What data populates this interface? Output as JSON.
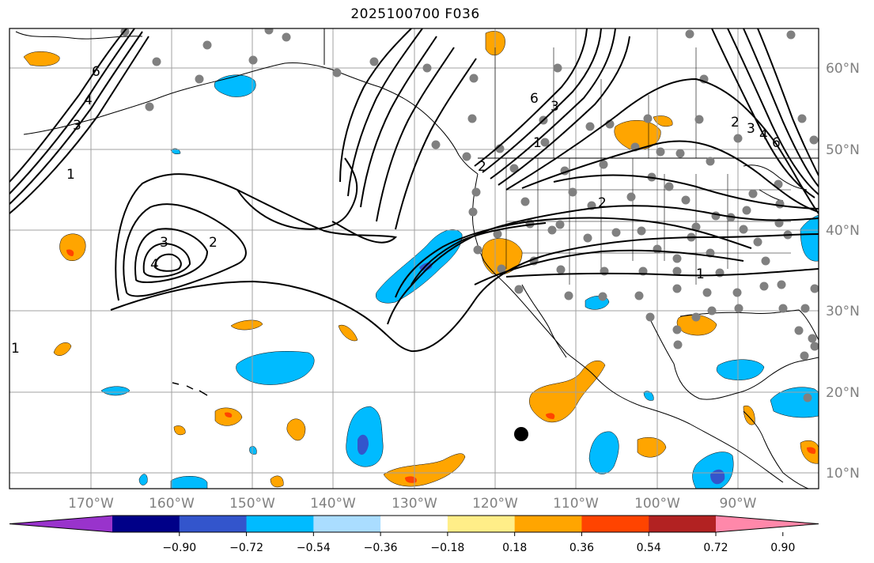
{
  "title": "2025100700 F036",
  "longitude_labels": [
    "170°W",
    "160°W",
    "150°W",
    "140°W",
    "130°W",
    "120°W",
    "110°W",
    "100°W",
    "90°W"
  ],
  "latitude_labels": [
    "60°N",
    "50°N",
    "40°N",
    "30°N",
    "20°N",
    "10°N"
  ],
  "contour_labels": [
    "1",
    "2",
    "3",
    "4",
    "6"
  ],
  "colorbar": {
    "tick_labels": [
      "−0.90",
      "−0.72",
      "−0.54",
      "−0.36",
      "−0.18",
      "0.18",
      "0.36",
      "0.54",
      "0.72",
      "0.90"
    ],
    "colors": [
      "#9933cc",
      "#000088",
      "#3355cc",
      "#00bbff",
      "#aaddff",
      "#ffffff",
      "#ffee88",
      "#ffa500",
      "#ff4400",
      "#b22222",
      "#ff88aa"
    ]
  },
  "colors": {
    "grid": "#a0a0a0",
    "coast": "#000000",
    "station_dot": "#808080",
    "storm_marker": "#000000"
  }
}
